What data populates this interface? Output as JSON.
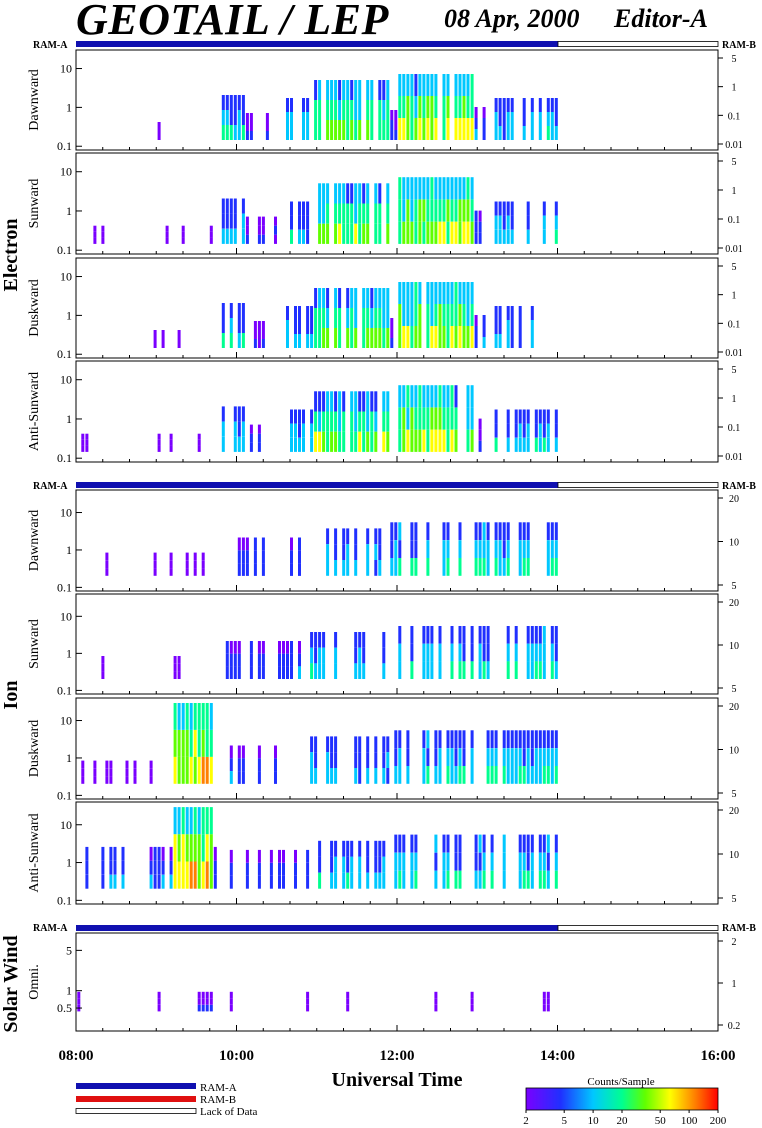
{
  "header": {
    "title": "GEOTAIL / LEP",
    "date": "08 Apr, 2000",
    "editor": "Editor-A"
  },
  "colors": {
    "ram_a": "#1010b0",
    "ram_b": "#e01010",
    "colormap": [
      "#7a00ff",
      "#2030ff",
      "#00c8ff",
      "#00ff90",
      "#60ff00",
      "#ffff00",
      "#ff8000",
      "#ff0000"
    ]
  },
  "ram_bar_labels": {
    "left": "RAM-A",
    "right": "RAM-B"
  },
  "group_labels": {
    "electron": "Electron",
    "ion": "Ion",
    "solar_wind": "Solar Wind"
  },
  "chart_data": {
    "type": "heatmap",
    "xlabel": "Universal Time",
    "x_ticks": [
      "08:00",
      "10:00",
      "12:00",
      "14:00",
      "16:00"
    ],
    "xlim": [
      "08:00",
      "16:00"
    ],
    "data_coverage": {
      "ram_a": [
        "08:00",
        "14:00"
      ],
      "lack_of_data": [
        "14:00",
        "16:00"
      ]
    },
    "y_scale": "log",
    "left_y_ticks": [
      "0.1",
      "1",
      "10"
    ],
    "colorbar": {
      "label": "Counts/Sample",
      "ticks": [
        "2",
        "5",
        "10",
        "20",
        "50",
        "100",
        "200"
      ]
    },
    "legend": [
      "RAM-A",
      "RAM-B",
      "Lack of Data"
    ],
    "groups": [
      {
        "name": "Electron",
        "right_y_ticks": [
          "5",
          "1",
          "0.1",
          "0.01"
        ],
        "panels": [
          {
            "label": "Dawnward",
            "ylim": [
              0.08,
              30
            ]
          },
          {
            "label": "Sunward",
            "ylim": [
              0.08,
              30
            ]
          },
          {
            "label": "Duskward",
            "ylim": [
              0.08,
              30
            ]
          },
          {
            "label": "Anti-Sunward",
            "ylim": [
              0.08,
              30
            ]
          }
        ]
      },
      {
        "name": "Ion",
        "right_y_ticks": [
          "20",
          "10",
          "5"
        ],
        "panels": [
          {
            "label": "Dawnward",
            "ylim": [
              0.08,
              40
            ]
          },
          {
            "label": "Sunward",
            "ylim": [
              0.08,
              40
            ]
          },
          {
            "label": "Duskward",
            "ylim": [
              0.08,
              40
            ]
          },
          {
            "label": "Anti-Sunward",
            "ylim": [
              0.08,
              40
            ]
          }
        ]
      },
      {
        "name": "Solar Wind",
        "right_y_ticks": [
          "2",
          "1",
          "0.2"
        ],
        "panels": [
          {
            "label": "Omni.",
            "left_y_ticks": [
              "0.5",
              "1",
              "5"
            ],
            "ylim": [
              0.2,
              10
            ]
          }
        ]
      }
    ]
  }
}
